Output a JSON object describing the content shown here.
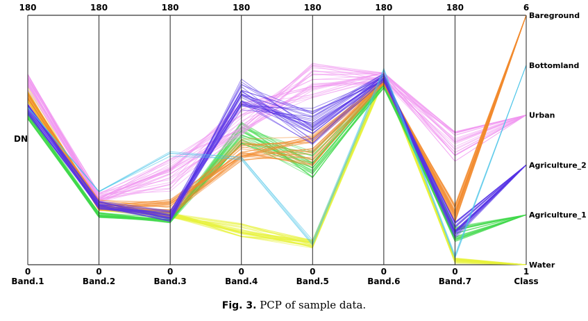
{
  "caption": {
    "label": "Fig. 3.",
    "text": "PCP of sample data."
  },
  "chart_data": {
    "type": "parallel-coordinates",
    "ylabel": "DN",
    "axes": [
      {
        "name": "Band.1",
        "min": "0",
        "max": "180"
      },
      {
        "name": "Band.2",
        "min": "0",
        "max": "180"
      },
      {
        "name": "Band.3",
        "min": "0",
        "max": "180"
      },
      {
        "name": "Band.4",
        "min": "0",
        "max": "180"
      },
      {
        "name": "Band.5",
        "min": "0",
        "max": "180"
      },
      {
        "name": "Band.6",
        "min": "0",
        "max": "180"
      },
      {
        "name": "Band.7",
        "min": "0",
        "max": "180"
      },
      {
        "name": "Class",
        "min": "1",
        "max": "6"
      }
    ],
    "classes": [
      {
        "name": "Bareground",
        "code": 6,
        "color": "#f28a2e",
        "values": [
          120,
          43,
          40,
          83,
          83,
          133,
          37
        ],
        "spread": [
          5,
          4,
          7,
          8,
          12,
          3,
          8
        ],
        "count": 30
      },
      {
        "name": "Bottomland",
        "code": 5,
        "color": "#45c2e8",
        "values": [
          112,
          52,
          80,
          76,
          16,
          140,
          6
        ],
        "spread": [
          2,
          1,
          2,
          2,
          2,
          2,
          2
        ],
        "count": 4
      },
      {
        "name": "Urban",
        "code": 4,
        "color": "#f096f0",
        "values": [
          132,
          48,
          65,
          105,
          133,
          135,
          85
        ],
        "spread": [
          6,
          4,
          12,
          12,
          15,
          4,
          12
        ],
        "count": 30
      },
      {
        "name": "Agriculture_2",
        "code": 3,
        "color": "#5533e6",
        "values": [
          112,
          43,
          35,
          123,
          100,
          135,
          25
        ],
        "spread": [
          4,
          3,
          4,
          12,
          14,
          3,
          6
        ],
        "count": 30
      },
      {
        "name": "Agriculture_1",
        "code": 2,
        "color": "#3fd94a",
        "values": [
          108,
          36,
          32,
          95,
          72,
          130,
          22
        ],
        "spread": [
          3,
          2,
          2,
          8,
          10,
          3,
          6
        ],
        "count": 30
      },
      {
        "name": "Water",
        "code": 1,
        "color": "#e8f23a",
        "values": [
          123,
          41,
          36,
          25,
          15,
          135,
          3
        ],
        "spread": [
          6,
          2,
          2,
          5,
          3,
          3,
          2
        ],
        "count": 30
      }
    ]
  }
}
